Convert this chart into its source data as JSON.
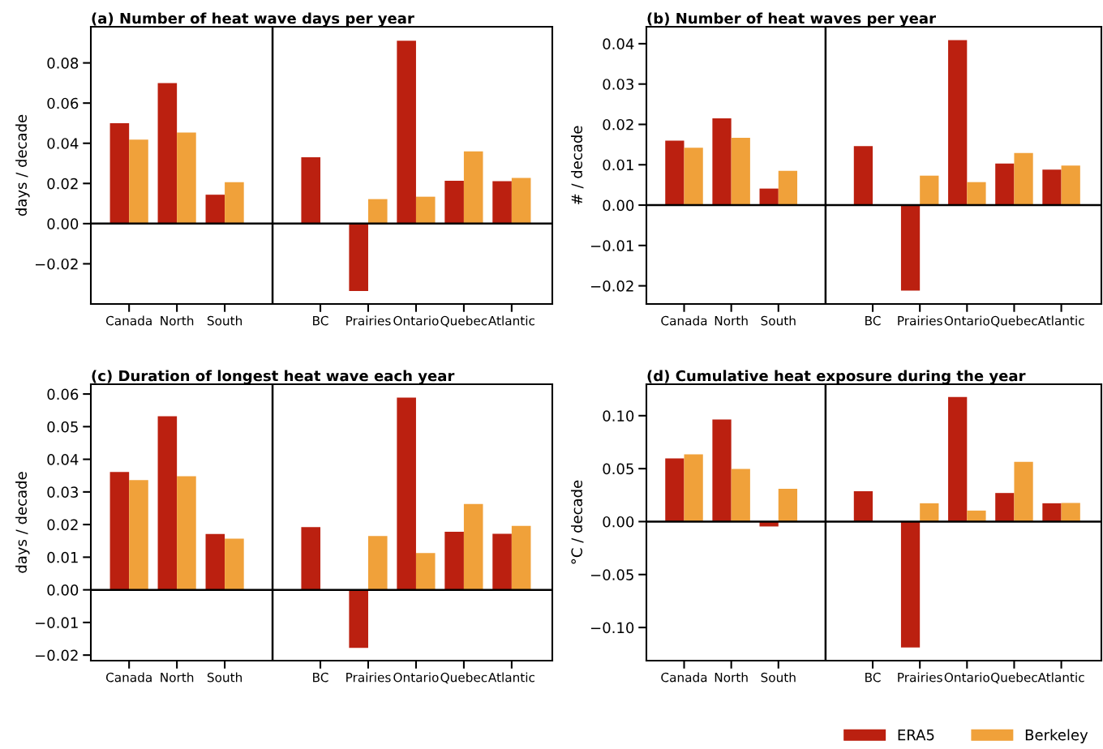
{
  "chart_data": [
    {
      "type": "bar",
      "title": "(a) Number of heat wave days per year",
      "ylabel": "days / decade",
      "categories": [
        "Canada",
        "North",
        "South",
        null,
        "BC",
        "Prairies",
        "Ontario",
        "Quebec",
        "Atlantic"
      ],
      "series": [
        {
          "color": "#bb2010",
          "values": [
            0.05,
            0.07,
            0.0144,
            null,
            0.033,
            -0.0335,
            0.091,
            0.0213,
            0.0211
          ]
        },
        {
          "color": "#f0a13a",
          "values": [
            0.0418,
            0.0453,
            0.0206,
            null,
            null,
            0.0122,
            0.0134,
            0.036,
            0.0227
          ]
        }
      ],
      "ylim": [
        -0.04,
        0.098
      ],
      "yticks": [
        {
          "value": -0.02,
          "label": "−0.02"
        },
        {
          "value": 0,
          "label": "0.00"
        },
        0.02,
        0.04,
        0.06,
        0.08
      ],
      "ref_lines": [
        {
          "axis": "y",
          "value": 0,
          "color": "#000000"
        }
      ]
    },
    {
      "type": "bar",
      "title": "(b) Number of heat waves per year",
      "ylabel": "# / decade",
      "categories": [
        "Canada",
        "North",
        "South",
        null,
        "BC",
        "Prairies",
        "Ontario",
        "Quebec",
        "Atlantic"
      ],
      "series": [
        {
          "color": "#bb2010",
          "values": [
            0.016,
            0.0215,
            0.0041,
            null,
            0.0146,
            -0.0212,
            0.0409,
            0.0103,
            0.0088
          ]
        },
        {
          "color": "#f0a13a",
          "values": [
            0.0142,
            0.0167,
            0.0085,
            null,
            null,
            0.0073,
            0.0057,
            0.0129,
            0.0098
          ]
        }
      ],
      "ylim": [
        -0.0245,
        0.0442
      ],
      "yticks": [
        {
          "value": -0.02,
          "label": "−0.02"
        },
        {
          "value": -0.01,
          "label": "−0.01"
        },
        {
          "value": 0,
          "label": "0.00"
        },
        0.01,
        0.02,
        0.03,
        0.04
      ],
      "ref_lines": [
        {
          "axis": "y",
          "value": 0,
          "color": "#000000"
        }
      ]
    },
    {
      "type": "bar",
      "title": "(c) Duration of longest heat wave each year",
      "ylabel": "days / decade",
      "categories": [
        "Canada",
        "North",
        "South",
        null,
        "BC",
        "Prairies",
        "Ontario",
        "Quebec",
        "Atlantic"
      ],
      "series": [
        {
          "color": "#bb2010",
          "values": [
            0.0361,
            0.0532,
            0.0171,
            null,
            0.0192,
            -0.0178,
            0.0589,
            0.0178,
            0.0172
          ]
        },
        {
          "color": "#f0a13a",
          "values": [
            0.0336,
            0.0348,
            0.0157,
            null,
            null,
            0.0165,
            0.0113,
            0.0263,
            0.0196
          ]
        }
      ],
      "ylim": [
        -0.0217,
        0.063
      ],
      "yticks": [
        {
          "value": -0.02,
          "label": "−0.02"
        },
        {
          "value": -0.01,
          "label": "−0.01"
        },
        {
          "value": 0,
          "label": "0.00"
        },
        0.01,
        0.02,
        0.03,
        0.04,
        0.05,
        0.06
      ],
      "ref_lines": [
        {
          "axis": "y",
          "value": 0,
          "color": "#000000"
        }
      ]
    },
    {
      "type": "bar",
      "title": "(d) Cumulative heat exposure during the year",
      "ylabel": "°C / decade",
      "categories": [
        "Canada",
        "North",
        "South",
        null,
        "BC",
        "Prairies",
        "Ontario",
        "Quebec",
        "Atlantic"
      ],
      "series": [
        {
          "name": "ERA5",
          "color": "#bb2010",
          "values": [
            0.0596,
            0.0964,
            -0.0046,
            null,
            0.0287,
            -0.1189,
            0.1176,
            0.027,
            0.0173
          ]
        },
        {
          "name": "Berkeley",
          "color": "#f0a13a",
          "values": [
            0.0635,
            0.0498,
            0.0309,
            null,
            null,
            0.0173,
            0.0104,
            0.0564,
            0.0176
          ]
        }
      ],
      "ylim": [
        -0.1313,
        0.1297
      ],
      "yticks": [
        {
          "value": -0.1,
          "label": "−0.10"
        },
        {
          "value": -0.05,
          "label": "−0.05"
        },
        {
          "value": 0.0,
          "label": "0.00"
        },
        0.05,
        {
          "value": 0.1,
          "label": "0.10"
        }
      ],
      "ref_lines": [
        {
          "axis": "y",
          "value": 0,
          "color": "#000000"
        }
      ],
      "legend": "bottom right"
    }
  ]
}
